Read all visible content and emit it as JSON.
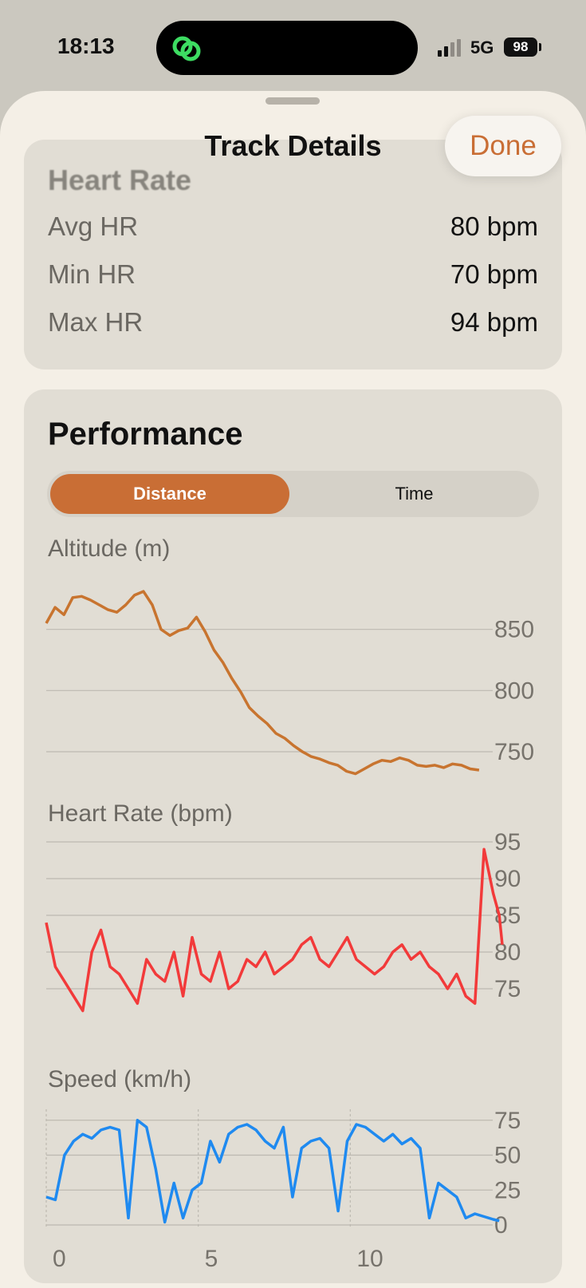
{
  "status_bar": {
    "time": "18:13",
    "network": "5G",
    "battery": "98"
  },
  "sheet": {
    "title": "Track Details",
    "done_label": "Done"
  },
  "heart_rate_summary": {
    "title": "Heart Rate",
    "rows": [
      {
        "label": "Avg HR",
        "value": "80 bpm"
      },
      {
        "label": "Min HR",
        "value": "70 bpm"
      },
      {
        "label": "Max HR",
        "value": "94 bpm"
      }
    ]
  },
  "performance": {
    "title": "Performance",
    "segments": [
      "Distance",
      "Time"
    ],
    "selected_segment": "Distance"
  },
  "colors": {
    "accent": "#c96e35",
    "altitude": "#c8742f",
    "heart_rate": "#f23a3a",
    "speed": "#1f8af0"
  },
  "chart_data": [
    {
      "type": "line",
      "title": "Altitude (m)",
      "x": [
        0,
        0.3,
        0.6,
        0.9,
        1.2,
        1.5,
        1.8,
        2.1,
        2.4,
        2.7,
        3.0,
        3.3,
        3.6,
        3.9,
        4.2,
        4.5,
        4.8,
        5.1,
        5.4,
        5.7,
        6.0,
        6.3,
        6.6,
        6.9,
        7.2,
        7.5,
        7.8,
        8.1,
        8.4,
        8.7,
        9.0,
        9.3,
        9.6,
        9.9,
        10.2,
        10.5,
        10.8,
        11.1,
        11.4,
        11.7,
        12.0,
        12.3,
        12.6,
        12.9,
        13.2,
        13.5,
        13.8,
        14.1,
        14.4,
        14.7
      ],
      "values": [
        855,
        868,
        862,
        876,
        877,
        874,
        870,
        866,
        864,
        870,
        878,
        881,
        870,
        850,
        845,
        849,
        851,
        860,
        848,
        833,
        823,
        810,
        799,
        786,
        779,
        773,
        765,
        761,
        755,
        750,
        746,
        744,
        741,
        739,
        734,
        732,
        736,
        740,
        743,
        742,
        745,
        743,
        739,
        738,
        739,
        737,
        740,
        739,
        736,
        735
      ],
      "yticks": [
        750,
        800,
        850
      ],
      "ylim": [
        735,
        885
      ],
      "grid": true
    },
    {
      "type": "line",
      "title": "Heart Rate (bpm)",
      "x": [
        0,
        0.3,
        0.6,
        0.9,
        1.2,
        1.5,
        1.8,
        2.1,
        2.4,
        2.7,
        3.0,
        3.3,
        3.6,
        3.9,
        4.2,
        4.5,
        4.8,
        5.1,
        5.4,
        5.7,
        6.0,
        6.3,
        6.6,
        6.9,
        7.2,
        7.5,
        7.8,
        8.1,
        8.4,
        8.7,
        9.0,
        9.3,
        9.6,
        9.9,
        10.2,
        10.5,
        10.8,
        11.1,
        11.4,
        11.7,
        12.0,
        12.3,
        12.6,
        12.9,
        13.2,
        13.5,
        13.8,
        14.1,
        14.4,
        14.7,
        14.9,
        15.0
      ],
      "values": [
        84,
        78,
        76,
        74,
        72,
        80,
        83,
        78,
        77,
        75,
        73,
        79,
        77,
        76,
        80,
        74,
        82,
        77,
        76,
        80,
        75,
        76,
        79,
        78,
        80,
        77,
        78,
        79,
        81,
        82,
        79,
        78,
        80,
        82,
        79,
        78,
        77,
        78,
        80,
        81,
        79,
        80,
        78,
        77,
        75,
        77,
        74,
        73,
        94,
        88,
        85,
        81
      ],
      "yticks": [
        75,
        80,
        85,
        90,
        95
      ],
      "ylim": [
        70,
        95
      ],
      "grid": true
    },
    {
      "type": "line",
      "title": "Speed (km/h)",
      "x": [
        0,
        0.3,
        0.6,
        0.9,
        1.2,
        1.5,
        1.8,
        2.1,
        2.4,
        2.7,
        3.0,
        3.3,
        3.6,
        3.9,
        4.2,
        4.5,
        4.8,
        5.1,
        5.4,
        5.7,
        6.0,
        6.3,
        6.6,
        6.9,
        7.2,
        7.5,
        7.8,
        8.1,
        8.4,
        8.7,
        9.0,
        9.3,
        9.6,
        9.9,
        10.2,
        10.5,
        10.8,
        11.1,
        11.4,
        11.7,
        12.0,
        12.3,
        12.6,
        12.9,
        13.2,
        13.5,
        13.8,
        14.1,
        14.4,
        14.7,
        14.9
      ],
      "values": [
        20,
        18,
        50,
        60,
        65,
        62,
        68,
        70,
        68,
        5,
        75,
        70,
        40,
        2,
        30,
        5,
        25,
        30,
        60,
        45,
        65,
        70,
        72,
        68,
        60,
        55,
        70,
        20,
        55,
        60,
        62,
        55,
        10,
        60,
        72,
        70,
        65,
        60,
        65,
        58,
        62,
        55,
        5,
        30,
        25,
        20,
        5,
        8,
        6,
        4,
        3
      ],
      "xticks": [
        0,
        5,
        10
      ],
      "yticks": [
        0,
        25,
        50,
        75
      ],
      "ylim": [
        0,
        80
      ],
      "grid": true
    }
  ]
}
